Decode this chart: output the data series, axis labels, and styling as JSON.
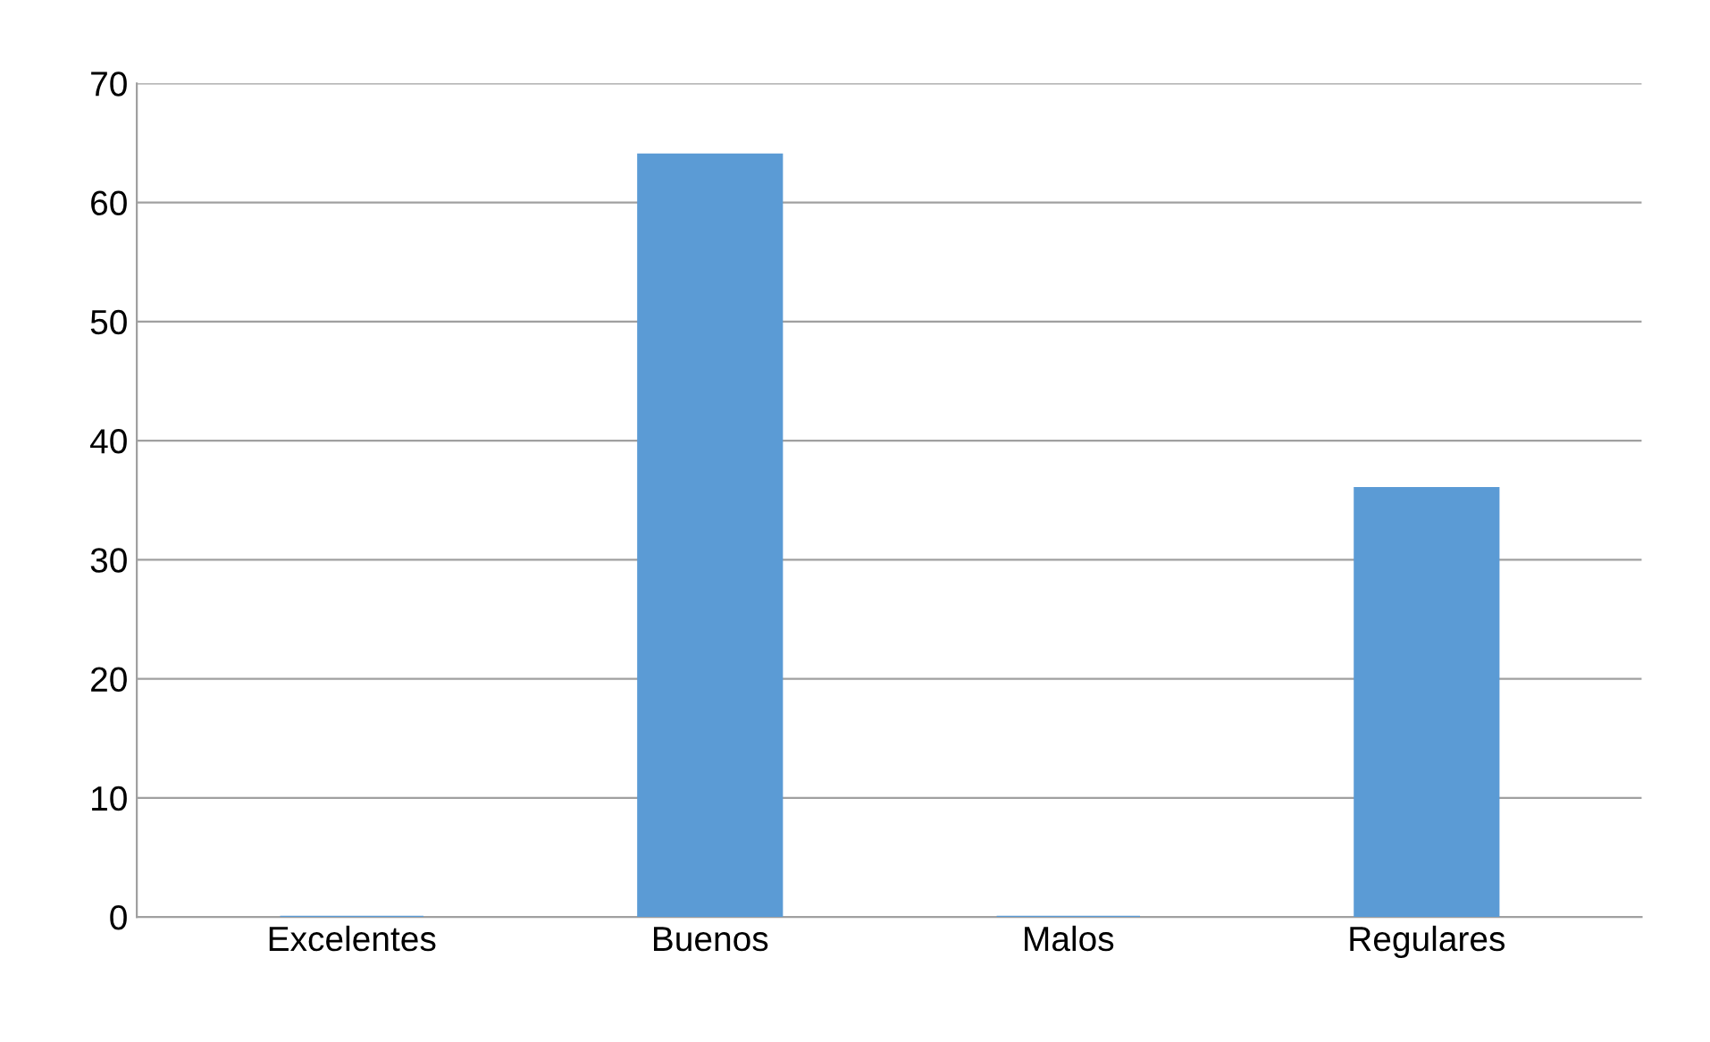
{
  "chart_data": {
    "type": "bar",
    "categories": [
      "Excelentes",
      "Buenos",
      "Malos",
      "Regulares"
    ],
    "values": [
      0,
      64,
      0,
      36
    ],
    "color": "#5b9bd5",
    "ylim": [
      0,
      70
    ],
    "yticks": [
      0,
      10,
      20,
      30,
      40,
      50,
      60,
      70
    ],
    "grid": "y",
    "legend": false
  }
}
